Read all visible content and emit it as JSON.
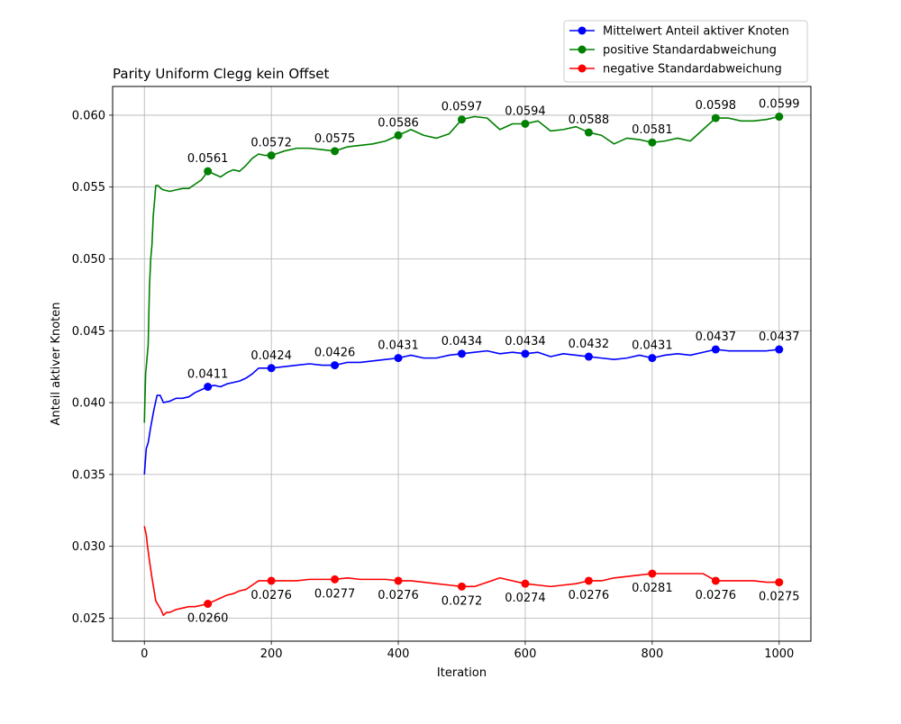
{
  "chart_data": {
    "type": "line",
    "title": "Parity Uniform Clegg kein Offset",
    "xlabel": "Iteration",
    "ylabel": "Anteil aktiver Knoten",
    "xlim": [
      -50,
      1050
    ],
    "ylim": [
      0.0234,
      0.062
    ],
    "xticks": [
      0,
      200,
      400,
      600,
      800,
      1000
    ],
    "xtick_labels": [
      "0",
      "200",
      "400",
      "600",
      "800",
      "1000"
    ],
    "yticks": [
      0.025,
      0.03,
      0.035,
      0.04,
      0.045,
      0.05,
      0.055,
      0.06
    ],
    "ytick_labels": [
      "0.025",
      "0.030",
      "0.035",
      "0.040",
      "0.045",
      "0.050",
      "0.055",
      "0.060"
    ],
    "grid": true,
    "legend_position": "top-right (outside plot)",
    "series": [
      {
        "name": "Mittelwert Anteil aktiver Knoten",
        "color": "#0000ff",
        "line": [
          [
            0,
            0.035
          ],
          [
            3,
            0.0368
          ],
          [
            6,
            0.0372
          ],
          [
            10,
            0.0383
          ],
          [
            15,
            0.0395
          ],
          [
            20,
            0.0405
          ],
          [
            25,
            0.0405
          ],
          [
            30,
            0.04
          ],
          [
            40,
            0.0401
          ],
          [
            50,
            0.0403
          ],
          [
            60,
            0.0403
          ],
          [
            70,
            0.0404
          ],
          [
            80,
            0.0407
          ],
          [
            90,
            0.0409
          ],
          [
            100,
            0.0411
          ],
          [
            110,
            0.0412
          ],
          [
            120,
            0.0411
          ],
          [
            130,
            0.0413
          ],
          [
            140,
            0.0414
          ],
          [
            150,
            0.0415
          ],
          [
            160,
            0.0417
          ],
          [
            170,
            0.042
          ],
          [
            180,
            0.0424
          ],
          [
            190,
            0.0424
          ],
          [
            200,
            0.0424
          ],
          [
            220,
            0.0425
          ],
          [
            240,
            0.0426
          ],
          [
            260,
            0.0427
          ],
          [
            280,
            0.0426
          ],
          [
            300,
            0.0426
          ],
          [
            320,
            0.0428
          ],
          [
            340,
            0.0428
          ],
          [
            360,
            0.0429
          ],
          [
            380,
            0.043
          ],
          [
            400,
            0.0431
          ],
          [
            420,
            0.0433
          ],
          [
            440,
            0.0431
          ],
          [
            460,
            0.0431
          ],
          [
            480,
            0.0433
          ],
          [
            500,
            0.0434
          ],
          [
            520,
            0.0435
          ],
          [
            540,
            0.0436
          ],
          [
            560,
            0.0434
          ],
          [
            580,
            0.0435
          ],
          [
            600,
            0.0434
          ],
          [
            620,
            0.0435
          ],
          [
            640,
            0.0432
          ],
          [
            660,
            0.0434
          ],
          [
            680,
            0.0433
          ],
          [
            700,
            0.0432
          ],
          [
            720,
            0.0431
          ],
          [
            740,
            0.043
          ],
          [
            760,
            0.0431
          ],
          [
            780,
            0.0433
          ],
          [
            800,
            0.0431
          ],
          [
            820,
            0.0433
          ],
          [
            840,
            0.0434
          ],
          [
            860,
            0.0433
          ],
          [
            880,
            0.0435
          ],
          [
            900,
            0.0437
          ],
          [
            920,
            0.0436
          ],
          [
            940,
            0.0436
          ],
          [
            960,
            0.0436
          ],
          [
            980,
            0.0436
          ],
          [
            1000,
            0.0437
          ]
        ],
        "markers": [
          [
            100,
            0.0411
          ],
          [
            200,
            0.0424
          ],
          [
            300,
            0.0426
          ],
          [
            400,
            0.0431
          ],
          [
            500,
            0.0434
          ],
          [
            600,
            0.0434
          ],
          [
            700,
            0.0432
          ],
          [
            800,
            0.0431
          ],
          [
            900,
            0.0437
          ],
          [
            1000,
            0.0437
          ]
        ],
        "labels": [
          "0.0411",
          "0.0424",
          "0.0426",
          "0.0431",
          "0.0434",
          "0.0434",
          "0.0432",
          "0.0431",
          "0.0437",
          "0.0437"
        ],
        "label_pos": "above"
      },
      {
        "name": "positive Standardabweichung",
        "color": "#008000",
        "line": [
          [
            0,
            0.0386
          ],
          [
            2,
            0.042
          ],
          [
            4,
            0.043
          ],
          [
            6,
            0.044
          ],
          [
            8,
            0.048
          ],
          [
            10,
            0.05
          ],
          [
            12,
            0.051
          ],
          [
            14,
            0.053
          ],
          [
            16,
            0.054
          ],
          [
            18,
            0.0551
          ],
          [
            22,
            0.0551
          ],
          [
            26,
            0.0549
          ],
          [
            30,
            0.0548
          ],
          [
            40,
            0.0547
          ],
          [
            50,
            0.0548
          ],
          [
            60,
            0.0549
          ],
          [
            70,
            0.0549
          ],
          [
            80,
            0.0552
          ],
          [
            90,
            0.0555
          ],
          [
            100,
            0.0561
          ],
          [
            110,
            0.0559
          ],
          [
            120,
            0.0557
          ],
          [
            130,
            0.056
          ],
          [
            140,
            0.0562
          ],
          [
            150,
            0.0561
          ],
          [
            160,
            0.0565
          ],
          [
            170,
            0.057
          ],
          [
            180,
            0.0573
          ],
          [
            190,
            0.0572
          ],
          [
            200,
            0.0572
          ],
          [
            220,
            0.0575
          ],
          [
            240,
            0.0577
          ],
          [
            260,
            0.0577
          ],
          [
            280,
            0.0576
          ],
          [
            300,
            0.0575
          ],
          [
            320,
            0.0578
          ],
          [
            340,
            0.0579
          ],
          [
            360,
            0.058
          ],
          [
            380,
            0.0582
          ],
          [
            400,
            0.0586
          ],
          [
            420,
            0.059
          ],
          [
            440,
            0.0586
          ],
          [
            460,
            0.0584
          ],
          [
            480,
            0.0587
          ],
          [
            500,
            0.0597
          ],
          [
            520,
            0.0599
          ],
          [
            540,
            0.0598
          ],
          [
            560,
            0.059
          ],
          [
            580,
            0.0594
          ],
          [
            600,
            0.0594
          ],
          [
            620,
            0.0596
          ],
          [
            640,
            0.0589
          ],
          [
            660,
            0.059
          ],
          [
            680,
            0.0592
          ],
          [
            700,
            0.0588
          ],
          [
            720,
            0.0586
          ],
          [
            740,
            0.058
          ],
          [
            760,
            0.0584
          ],
          [
            780,
            0.0583
          ],
          [
            800,
            0.0581
          ],
          [
            820,
            0.0582
          ],
          [
            840,
            0.0584
          ],
          [
            860,
            0.0582
          ],
          [
            880,
            0.059
          ],
          [
            900,
            0.0598
          ],
          [
            920,
            0.0598
          ],
          [
            940,
            0.0596
          ],
          [
            960,
            0.0596
          ],
          [
            980,
            0.0597
          ],
          [
            1000,
            0.0599
          ]
        ],
        "markers": [
          [
            100,
            0.0561
          ],
          [
            200,
            0.0572
          ],
          [
            300,
            0.0575
          ],
          [
            400,
            0.0586
          ],
          [
            500,
            0.0597
          ],
          [
            600,
            0.0594
          ],
          [
            700,
            0.0588
          ],
          [
            800,
            0.0581
          ],
          [
            900,
            0.0598
          ],
          [
            1000,
            0.0599
          ]
        ],
        "labels": [
          "0.0561",
          "0.0572",
          "0.0575",
          "0.0586",
          "0.0597",
          "0.0594",
          "0.0588",
          "0.0581",
          "0.0598",
          "0.0599"
        ],
        "label_pos": "above"
      },
      {
        "name": "negative Standardabweichung",
        "color": "#ff0000",
        "line": [
          [
            0,
            0.0314
          ],
          [
            3,
            0.0308
          ],
          [
            5,
            0.03
          ],
          [
            8,
            0.029
          ],
          [
            10,
            0.0284
          ],
          [
            12,
            0.0278
          ],
          [
            15,
            0.027
          ],
          [
            18,
            0.0262
          ],
          [
            22,
            0.0259
          ],
          [
            26,
            0.0256
          ],
          [
            30,
            0.0252
          ],
          [
            35,
            0.0254
          ],
          [
            40,
            0.0254
          ],
          [
            50,
            0.0256
          ],
          [
            60,
            0.0257
          ],
          [
            70,
            0.0258
          ],
          [
            80,
            0.0258
          ],
          [
            90,
            0.0259
          ],
          [
            100,
            0.026
          ],
          [
            110,
            0.0262
          ],
          [
            120,
            0.0264
          ],
          [
            130,
            0.0266
          ],
          [
            140,
            0.0267
          ],
          [
            150,
            0.0269
          ],
          [
            160,
            0.027
          ],
          [
            170,
            0.0273
          ],
          [
            180,
            0.0276
          ],
          [
            190,
            0.0276
          ],
          [
            200,
            0.0276
          ],
          [
            220,
            0.0276
          ],
          [
            240,
            0.0276
          ],
          [
            260,
            0.0277
          ],
          [
            280,
            0.0277
          ],
          [
            300,
            0.0277
          ],
          [
            320,
            0.0278
          ],
          [
            340,
            0.0277
          ],
          [
            360,
            0.0277
          ],
          [
            380,
            0.0277
          ],
          [
            400,
            0.0276
          ],
          [
            420,
            0.0276
          ],
          [
            440,
            0.0275
          ],
          [
            460,
            0.0274
          ],
          [
            480,
            0.0273
          ],
          [
            500,
            0.0272
          ],
          [
            520,
            0.0272
          ],
          [
            540,
            0.0275
          ],
          [
            560,
            0.0278
          ],
          [
            580,
            0.0276
          ],
          [
            600,
            0.0274
          ],
          [
            620,
            0.0273
          ],
          [
            640,
            0.0272
          ],
          [
            660,
            0.0273
          ],
          [
            680,
            0.0274
          ],
          [
            700,
            0.0276
          ],
          [
            720,
            0.0276
          ],
          [
            740,
            0.0278
          ],
          [
            760,
            0.0279
          ],
          [
            780,
            0.028
          ],
          [
            800,
            0.0281
          ],
          [
            820,
            0.0281
          ],
          [
            840,
            0.0281
          ],
          [
            860,
            0.0281
          ],
          [
            880,
            0.0281
          ],
          [
            900,
            0.0276
          ],
          [
            920,
            0.0276
          ],
          [
            940,
            0.0276
          ],
          [
            960,
            0.0276
          ],
          [
            980,
            0.0275
          ],
          [
            1000,
            0.0275
          ]
        ],
        "markers": [
          [
            100,
            0.026
          ],
          [
            200,
            0.0276
          ],
          [
            300,
            0.0277
          ],
          [
            400,
            0.0276
          ],
          [
            500,
            0.0272
          ],
          [
            600,
            0.0274
          ],
          [
            700,
            0.0276
          ],
          [
            800,
            0.0281
          ],
          [
            900,
            0.0276
          ],
          [
            1000,
            0.0275
          ]
        ],
        "labels": [
          "0.0260",
          "0.0276",
          "0.0277",
          "0.0276",
          "0.0272",
          "0.0274",
          "0.0276",
          "0.0281",
          "0.0276",
          "0.0275"
        ],
        "label_pos": "below"
      }
    ]
  }
}
